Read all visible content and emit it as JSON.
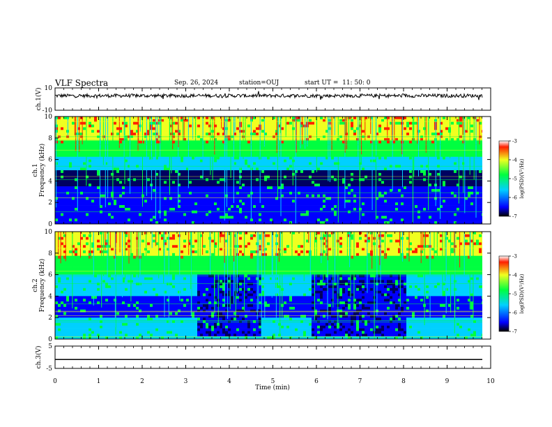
{
  "header": {
    "title": "VLF Spectra",
    "date": "Sep. 26, 2024",
    "station": "station=OUJ",
    "start": "start UT =  11: 50: 0"
  },
  "chart_data": [
    {
      "type": "line",
      "panel": "ch1-waveform",
      "ylabel": "ch.1(V)",
      "ylim": [
        -10,
        10
      ],
      "yticks": [
        "10",
        "-10"
      ],
      "xlim": [
        0,
        10
      ],
      "series": [
        {
          "values_description_level": 3.0
        }
      ]
    },
    {
      "type": "heatmap",
      "panel": "ch1-spectrogram",
      "ylabel": "ch.1\nFrequency (kHz)",
      "ylim": [
        0,
        10
      ],
      "yticks": [
        "0",
        "2",
        "4",
        "6",
        "8",
        "10"
      ],
      "xlim": [
        0,
        10
      ],
      "colorbar": {
        "label": "log(PSD)(V²/Hz)",
        "range": [
          -7,
          -3
        ],
        "ticks": [
          "-3",
          "-4",
          "-5",
          "-6",
          "-7"
        ]
      }
    },
    {
      "type": "heatmap",
      "panel": "ch2-spectrogram",
      "ylabel": "ch.2\nFrequency (kHz)",
      "ylim": [
        0,
        10
      ],
      "yticks": [
        "0",
        "2",
        "4",
        "6",
        "8",
        "10"
      ],
      "xlim": [
        0,
        10
      ],
      "colorbar": {
        "label": "log(PSD)(V²/Hz)",
        "range": [
          -7,
          -3
        ],
        "ticks": [
          "-3",
          "-4",
          "-5",
          "-6",
          "-7"
        ]
      }
    },
    {
      "type": "line",
      "panel": "ch3-waveform",
      "ylabel": "ch.3(V)",
      "ylim": [
        -5,
        5
      ],
      "yticks": [
        "5",
        "-5"
      ],
      "xlim": [
        0,
        10
      ],
      "series": [
        {
          "constant": -1
        }
      ]
    }
  ],
  "x_axis": {
    "label": "Time (min)",
    "ticks": [
      "0",
      "1",
      "2",
      "3",
      "4",
      "5",
      "6",
      "7",
      "8",
      "9",
      "10"
    ]
  },
  "colors": {
    "deep": "#000060",
    "blue": "#0000ff",
    "cyan": "#00d0ff",
    "green": "#00ff40",
    "yellow": "#f0ff20",
    "red": "#ff2000"
  }
}
